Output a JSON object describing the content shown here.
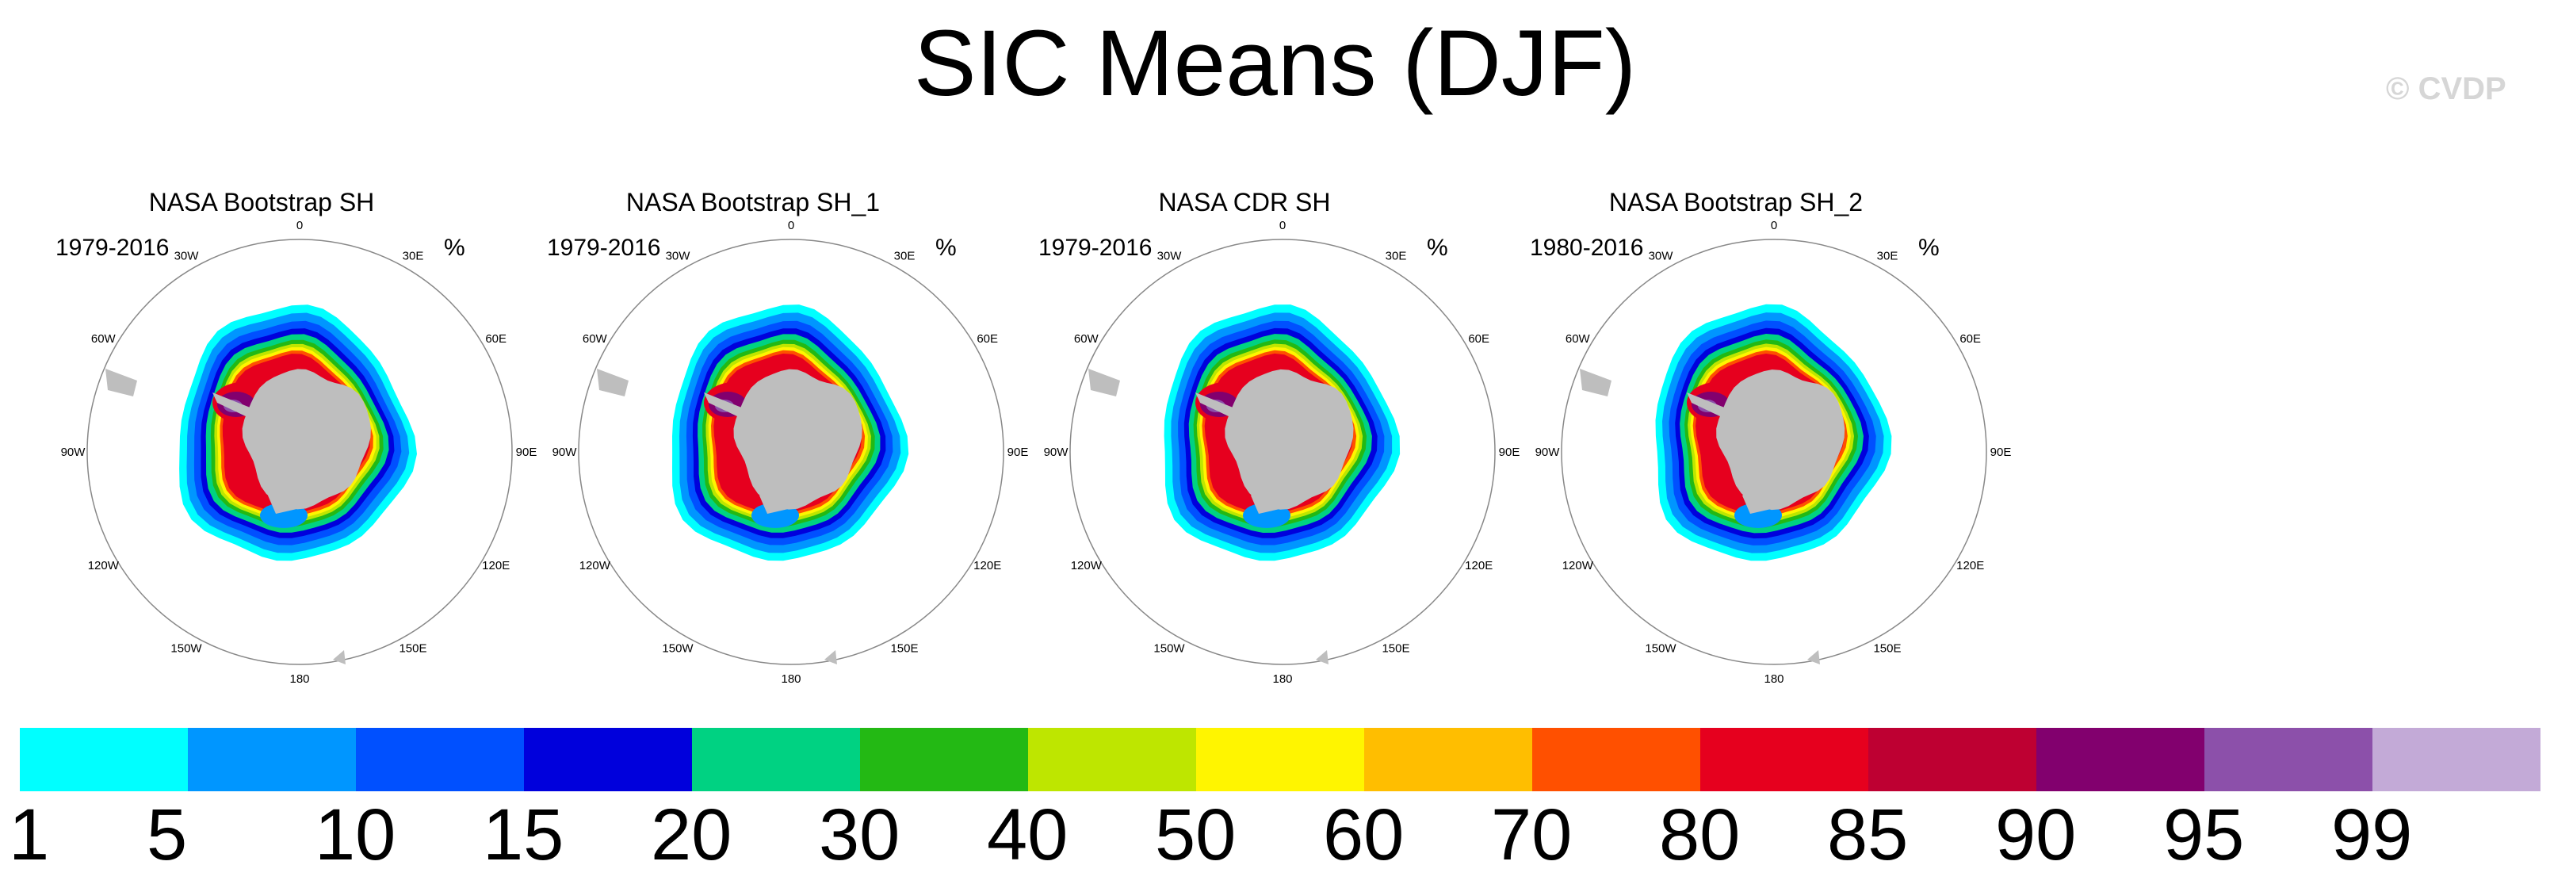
{
  "title": "SIC Means (DJF)",
  "watermark": "© CVDP",
  "chart_data": [
    {
      "type": "heatmap",
      "projection": "south polar stereographic",
      "title": "NASA Bootstrap SH",
      "years": "1979-2016",
      "unit": "%",
      "variant": 0
    },
    {
      "type": "heatmap",
      "projection": "south polar stereographic",
      "title": "NASA Bootstrap SH_1",
      "years": "1979-2016",
      "unit": "%",
      "variant": 1
    },
    {
      "type": "heatmap",
      "projection": "south polar stereographic",
      "title": "NASA CDR SH",
      "years": "1979-2016",
      "unit": "%",
      "variant": 2
    },
    {
      "type": "heatmap",
      "projection": "south polar stereographic",
      "title": "NASA Bootstrap SH_2",
      "years": "1980-2016",
      "unit": "%",
      "variant": 3
    }
  ],
  "longitude_labels": [
    "0",
    "30E",
    "60E",
    "90E",
    "120E",
    "150E",
    "180",
    "150W",
    "120W",
    "90W",
    "60W",
    "30W"
  ],
  "colorbar": {
    "levels": [
      "1",
      "5",
      "10",
      "15",
      "20",
      "30",
      "40",
      "50",
      "60",
      "70",
      "80",
      "85",
      "90",
      "95",
      "99"
    ],
    "colors": [
      "#00ffff",
      "#0096ff",
      "#0050ff",
      "#0000dc",
      "#00d282",
      "#23b914",
      "#bee600",
      "#fff500",
      "#ffbe00",
      "#ff5000",
      "#e6001e",
      "#be0032",
      "#82006e",
      "#8c50aa",
      "#c3aad7"
    ]
  },
  "land_color": "#bebebe"
}
